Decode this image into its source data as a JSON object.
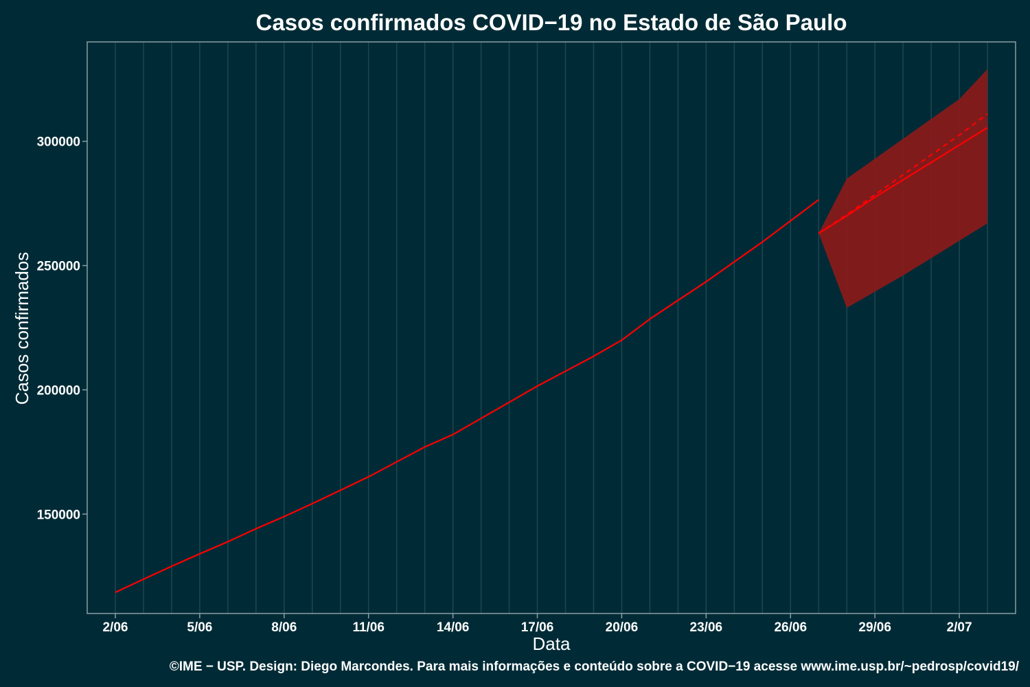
{
  "chart_data": {
    "type": "line",
    "title": "Casos confirmados COVID−19 no Estado de São Paulo",
    "xlabel": "Data",
    "ylabel": "Casos confirmados",
    "caption": "©IME − USP. Design: Diego Marcondes. Para mais informações e conteúdo sobre a COVID−19 acesse www.ime.usp.br/~pedrosp/covid19/",
    "x_tick_labels": [
      "2/06",
      "5/06",
      "8/06",
      "11/06",
      "14/06",
      "17/06",
      "20/06",
      "23/06",
      "26/06",
      "29/06",
      "2/07"
    ],
    "y_ticks": [
      150000,
      200000,
      250000,
      300000
    ],
    "y_tick_labels": [
      "150000",
      "200000",
      "250000",
      "300000"
    ],
    "xlim": [
      "2020-06-01",
      "2020-07-04"
    ],
    "ylim": [
      110000,
      340000
    ],
    "grid": true,
    "legend": "none",
    "series": [
      {
        "style": "solid",
        "color": "#ff0000",
        "x": [
          "2020-06-02",
          "2020-06-03",
          "2020-06-04",
          "2020-06-05",
          "2020-06-06",
          "2020-06-07",
          "2020-06-08",
          "2020-06-09",
          "2020-06-10",
          "2020-06-11",
          "2020-06-12",
          "2020-06-13",
          "2020-06-14",
          "2020-06-15",
          "2020-06-16",
          "2020-06-17",
          "2020-06-18",
          "2020-06-19",
          "2020-06-20",
          "2020-06-21",
          "2020-06-22",
          "2020-06-23",
          "2020-06-24",
          "2020-06-25",
          "2020-06-26",
          "2020-06-27"
        ],
        "values": [
          118500,
          123800,
          129000,
          134000,
          138900,
          144100,
          149000,
          154200,
          159600,
          165000,
          171000,
          177000,
          182000,
          188500,
          195000,
          201500,
          207500,
          213500,
          220000,
          228500,
          236000,
          243500,
          251500,
          259500,
          268000,
          276500
        ]
      },
      {
        "style": "solid",
        "color": "#ff0000",
        "x": [
          "2020-06-27",
          "2020-06-28",
          "2020-06-29",
          "2020-06-30",
          "2020-07-01",
          "2020-07-02",
          "2020-07-03"
        ],
        "values": [
          263000,
          270000,
          277500,
          284500,
          291500,
          298500,
          305500
        ]
      },
      {
        "style": "dashed",
        "color": "#ff0000",
        "x": [
          "2020-06-27",
          "2020-06-28",
          "2020-06-29",
          "2020-06-30",
          "2020-07-01",
          "2020-07-02",
          "2020-07-03"
        ],
        "values": [
          263000,
          270500,
          278500,
          286500,
          294500,
          302500,
          311000
        ]
      }
    ],
    "band": {
      "color": "#8b1a1a",
      "x": [
        "2020-06-27",
        "2020-06-28",
        "2020-06-29",
        "2020-06-30",
        "2020-07-01",
        "2020-07-02",
        "2020-07-03"
      ],
      "lower": [
        263000,
        233000,
        239500,
        246000,
        253000,
        260000,
        267000
      ],
      "upper": [
        263000,
        285000,
        293000,
        301000,
        309000,
        317000,
        329000
      ]
    },
    "colors": {
      "background": "#002b36",
      "grid": "#1d4650",
      "frame": "#8aa0a6",
      "text": "#ffffff"
    }
  }
}
